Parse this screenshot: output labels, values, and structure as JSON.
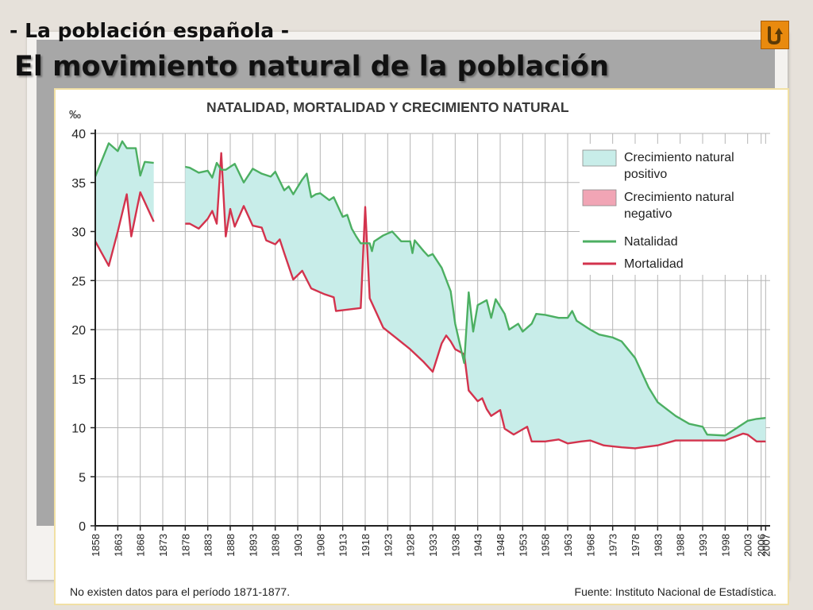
{
  "header": {
    "subtitle": "- La población española -",
    "title": "El movimiento natural de la población"
  },
  "nav": {
    "return_icon": "return-u-turn-icon",
    "accent": "#e98a0e"
  },
  "colors": {
    "natalidad": "#4caf62",
    "mortalidad": "#d3334d",
    "positive_fill": "#c8ede9",
    "negative_fill": "#f1a5b5",
    "grid": "#b5b5b5"
  },
  "chart_data": {
    "type": "line",
    "title": "NATALIDAD, MORTALIDAD Y CRECIMIENTO NATURAL",
    "ylabel": "‰",
    "xlabel": "",
    "ylim": [
      0,
      40
    ],
    "xlim": [
      1858,
      2008
    ],
    "yticks": [
      "0",
      "5",
      "10",
      "15",
      "20",
      "25",
      "30",
      "35",
      "40"
    ],
    "xticks": [
      "1858",
      "1863",
      "1868",
      "1873",
      "1878",
      "1883",
      "1888",
      "1893",
      "1898",
      "1903",
      "1908",
      "1913",
      "1918",
      "1923",
      "1928",
      "1933",
      "1938",
      "1943",
      "1948",
      "1953",
      "1958",
      "1963",
      "1968",
      "1973",
      "1978",
      "1983",
      "1988",
      "1993",
      "1998",
      "2003",
      "2006",
      "2007"
    ],
    "grid": true,
    "legend_position": "top-right",
    "legend": [
      {
        "label": "Crecimiento natural positivo",
        "kind": "area",
        "color": "#c8ede9"
      },
      {
        "label": "Crecimiento natural negativo",
        "kind": "area",
        "color": "#f1a5b5"
      },
      {
        "label": "Natalidad",
        "kind": "line",
        "color": "#4caf62"
      },
      {
        "label": "Mortalidad",
        "kind": "line",
        "color": "#d3334d"
      }
    ],
    "segments": [
      {
        "natalidad": [
          [
            1858,
            35.6
          ],
          [
            1861,
            39.0
          ],
          [
            1863,
            38.2
          ],
          [
            1864,
            39.2
          ],
          [
            1865,
            38.5
          ],
          [
            1867,
            38.5
          ],
          [
            1868,
            35.7
          ],
          [
            1869,
            37.1
          ],
          [
            1871,
            37.0
          ]
        ],
        "mortalidad": [
          [
            1858,
            29.0
          ],
          [
            1861,
            26.5
          ],
          [
            1863,
            30.0
          ],
          [
            1865,
            33.8
          ],
          [
            1866,
            29.5
          ],
          [
            1868,
            34.0
          ],
          [
            1871,
            31.0
          ]
        ]
      },
      {
        "natalidad": [
          [
            1878,
            36.6
          ],
          [
            1879,
            36.5
          ],
          [
            1881,
            36.0
          ],
          [
            1883,
            36.2
          ],
          [
            1884,
            35.5
          ],
          [
            1885,
            37.0
          ],
          [
            1886,
            36.3
          ],
          [
            1887,
            36.3
          ],
          [
            1889,
            36.9
          ],
          [
            1891,
            35.0
          ],
          [
            1893,
            36.4
          ],
          [
            1895,
            35.9
          ],
          [
            1897,
            35.6
          ],
          [
            1898,
            36.1
          ],
          [
            1900,
            34.2
          ],
          [
            1901,
            34.6
          ],
          [
            1902,
            33.8
          ],
          [
            1904,
            35.3
          ],
          [
            1905,
            35.9
          ],
          [
            1906,
            33.5
          ],
          [
            1907,
            33.8
          ],
          [
            1908,
            33.9
          ],
          [
            1910,
            33.2
          ],
          [
            1911,
            33.5
          ],
          [
            1913,
            31.5
          ],
          [
            1914,
            31.7
          ],
          [
            1915,
            30.3
          ],
          [
            1916,
            29.5
          ],
          [
            1917,
            28.8
          ],
          [
            1919,
            28.8
          ],
          [
            1919.5,
            28.0
          ],
          [
            1920,
            29.0
          ],
          [
            1922,
            29.6
          ],
          [
            1924,
            30.0
          ],
          [
            1926,
            29.0
          ],
          [
            1928,
            29.0
          ],
          [
            1928.5,
            27.8
          ],
          [
            1929,
            29.1
          ],
          [
            1931,
            28.0
          ],
          [
            1932,
            27.5
          ],
          [
            1933,
            27.7
          ],
          [
            1935,
            26.3
          ],
          [
            1937,
            23.9
          ],
          [
            1938,
            20.6
          ],
          [
            1940,
            16.6
          ],
          [
            1941,
            23.8
          ],
          [
            1942,
            19.8
          ],
          [
            1943,
            22.5
          ],
          [
            1945,
            23.0
          ],
          [
            1946,
            21.2
          ],
          [
            1947,
            23.1
          ],
          [
            1949,
            21.6
          ],
          [
            1950,
            20.0
          ],
          [
            1952,
            20.6
          ],
          [
            1953,
            19.8
          ],
          [
            1955,
            20.6
          ],
          [
            1956,
            21.6
          ],
          [
            1958,
            21.5
          ],
          [
            1961,
            21.2
          ],
          [
            1963,
            21.2
          ],
          [
            1964,
            21.9
          ],
          [
            1965,
            20.9
          ],
          [
            1968,
            20.0
          ],
          [
            1970,
            19.5
          ],
          [
            1973,
            19.2
          ],
          [
            1975,
            18.8
          ],
          [
            1978,
            17.1
          ],
          [
            1981,
            14.1
          ],
          [
            1983,
            12.6
          ],
          [
            1987,
            11.2
          ],
          [
            1990,
            10.4
          ],
          [
            1993,
            10.1
          ],
          [
            1994,
            9.3
          ],
          [
            1998,
            9.2
          ],
          [
            2000,
            9.8
          ],
          [
            2003,
            10.7
          ],
          [
            2005,
            10.9
          ],
          [
            2007,
            11.0
          ]
        ],
        "mortalidad": [
          [
            1878,
            30.8
          ],
          [
            1879,
            30.8
          ],
          [
            1881,
            30.3
          ],
          [
            1883,
            31.3
          ],
          [
            1884,
            32.1
          ],
          [
            1885,
            30.8
          ],
          [
            1886,
            38.0
          ],
          [
            1887,
            29.5
          ],
          [
            1888,
            32.3
          ],
          [
            1889,
            30.5
          ],
          [
            1891,
            32.6
          ],
          [
            1893,
            30.6
          ],
          [
            1895,
            30.4
          ],
          [
            1896,
            29.1
          ],
          [
            1898,
            28.7
          ],
          [
            1899,
            29.2
          ],
          [
            1900,
            27.8
          ],
          [
            1902,
            25.1
          ],
          [
            1904,
            26.0
          ],
          [
            1906,
            24.2
          ],
          [
            1909,
            23.6
          ],
          [
            1911,
            23.3
          ],
          [
            1911.5,
            21.9
          ],
          [
            1917,
            22.2
          ],
          [
            1918,
            32.5
          ],
          [
            1919,
            23.2
          ],
          [
            1922,
            20.2
          ],
          [
            1925,
            19.1
          ],
          [
            1928,
            18.0
          ],
          [
            1931,
            16.7
          ],
          [
            1933,
            15.7
          ],
          [
            1935,
            18.6
          ],
          [
            1936,
            19.4
          ],
          [
            1937,
            18.8
          ],
          [
            1938,
            18.0
          ],
          [
            1940,
            17.5
          ],
          [
            1941,
            13.8
          ],
          [
            1943,
            12.7
          ],
          [
            1944,
            13.0
          ],
          [
            1945,
            11.9
          ],
          [
            1946,
            11.2
          ],
          [
            1948,
            11.8
          ],
          [
            1949,
            9.9
          ],
          [
            1951,
            9.3
          ],
          [
            1954,
            10.1
          ],
          [
            1955,
            8.6
          ],
          [
            1958,
            8.6
          ],
          [
            1961,
            8.8
          ],
          [
            1963,
            8.4
          ],
          [
            1966,
            8.6
          ],
          [
            1968,
            8.7
          ],
          [
            1971,
            8.2
          ],
          [
            1975,
            8.0
          ],
          [
            1978,
            7.9
          ],
          [
            1983,
            8.2
          ],
          [
            1987,
            8.7
          ],
          [
            1991,
            8.7
          ],
          [
            1998,
            8.7
          ],
          [
            2002,
            9.4
          ],
          [
            2003,
            9.3
          ],
          [
            2005,
            8.6
          ],
          [
            2007,
            8.6
          ]
        ]
      }
    ],
    "notes": {
      "left": "No existen datos para el período 1871-1877.",
      "right": "Fuente: Instituto Nacional de Estadística."
    }
  }
}
